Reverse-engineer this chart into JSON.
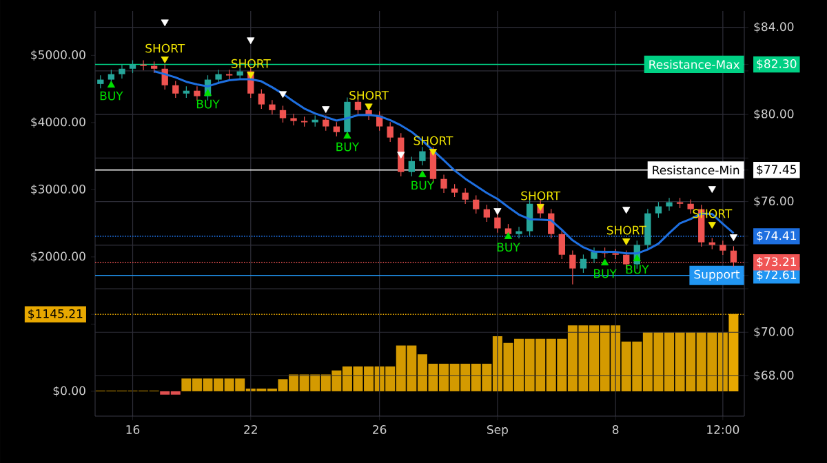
{
  "chart_data": {
    "type": "candlestick",
    "grid": true,
    "categories": [
      null,
      null,
      null,
      "16",
      null,
      null,
      null,
      null,
      null,
      null,
      null,
      null,
      null,
      null,
      "22",
      null,
      null,
      null,
      null,
      null,
      null,
      null,
      null,
      null,
      null,
      null,
      "26",
      null,
      null,
      null,
      null,
      null,
      null,
      null,
      null,
      null,
      null,
      "Sep",
      null,
      null,
      null,
      null,
      null,
      null,
      null,
      null,
      null,
      null,
      "8",
      null,
      null,
      null,
      null,
      null,
      null,
      null,
      null,
      null,
      "12:00",
      null
    ],
    "ohlc": [
      [
        81.4,
        81.8,
        81.2,
        81.6
      ],
      [
        81.6,
        82.05,
        81.4,
        81.85
      ],
      [
        81.85,
        82.3,
        81.65,
        82.1
      ],
      [
        82.1,
        82.49,
        81.9,
        82.29
      ],
      [
        82.29,
        82.49,
        82.03,
        82.23
      ],
      [
        82.23,
        82.43,
        81.9,
        82.1
      ],
      [
        82.1,
        82.3,
        81.14,
        81.34
      ],
      [
        81.34,
        81.54,
        80.76,
        80.96
      ],
      [
        80.96,
        81.29,
        80.76,
        81.09
      ],
      [
        81.09,
        81.29,
        80.64,
        80.84
      ],
      [
        80.84,
        81.8,
        80.64,
        81.6
      ],
      [
        81.6,
        82.05,
        81.4,
        81.85
      ],
      [
        81.85,
        82.05,
        81.59,
        81.79
      ],
      [
        81.79,
        82.18,
        81.59,
        81.98
      ],
      [
        81.98,
        82.18,
        80.76,
        80.96
      ],
      [
        80.96,
        81.16,
        80.26,
        80.46
      ],
      [
        80.46,
        80.66,
        80.0,
        80.2
      ],
      [
        80.2,
        80.4,
        79.63,
        79.83
      ],
      [
        79.83,
        80.03,
        79.5,
        79.7
      ],
      [
        79.7,
        79.9,
        79.44,
        79.64
      ],
      [
        79.64,
        79.96,
        79.44,
        79.76
      ],
      [
        79.76,
        79.96,
        79.25,
        79.45
      ],
      [
        79.45,
        79.65,
        78.99,
        79.19
      ],
      [
        79.19,
        80.78,
        78.99,
        80.58
      ],
      [
        80.58,
        80.78,
        80.0,
        80.2
      ],
      [
        80.2,
        80.4,
        79.75,
        79.95
      ],
      [
        79.95,
        80.15,
        79.25,
        79.45
      ],
      [
        79.45,
        79.65,
        78.74,
        78.94
      ],
      [
        78.94,
        79.14,
        77.16,
        77.36
      ],
      [
        77.36,
        78.06,
        77.16,
        77.86
      ],
      [
        77.86,
        78.51,
        77.66,
        78.31
      ],
      [
        78.31,
        78.51,
        76.84,
        77.04
      ],
      [
        77.04,
        77.24,
        76.4,
        76.6
      ],
      [
        76.6,
        76.8,
        76.21,
        76.41
      ],
      [
        76.41,
        76.61,
        75.89,
        76.09
      ],
      [
        76.09,
        76.29,
        75.45,
        75.65
      ],
      [
        75.65,
        75.85,
        75.07,
        75.27
      ],
      [
        75.27,
        75.47,
        74.57,
        74.77
      ],
      [
        74.77,
        74.97,
        74.31,
        74.51
      ],
      [
        74.51,
        74.84,
        74.31,
        74.64
      ],
      [
        74.64,
        76.1,
        74.44,
        75.9
      ],
      [
        75.9,
        76.1,
        75.26,
        75.46
      ],
      [
        75.46,
        75.66,
        74.31,
        74.51
      ],
      [
        74.51,
        74.71,
        73.36,
        73.56
      ],
      [
        73.56,
        73.76,
        72.2,
        72.93
      ],
      [
        72.93,
        73.57,
        72.73,
        73.37
      ],
      [
        73.37,
        73.89,
        73.17,
        73.69
      ],
      [
        73.69,
        73.89,
        73.43,
        73.63
      ],
      [
        73.63,
        73.83,
        73.36,
        73.56
      ],
      [
        73.56,
        73.76,
        72.92,
        73.12
      ],
      [
        73.12,
        74.21,
        72.92,
        74.01
      ],
      [
        74.01,
        75.66,
        73.81,
        75.46
      ],
      [
        75.46,
        75.98,
        75.26,
        75.78
      ],
      [
        75.78,
        76.17,
        75.58,
        75.97
      ],
      [
        75.97,
        76.17,
        75.7,
        75.9
      ],
      [
        75.9,
        76.1,
        75.45,
        75.65
      ],
      [
        75.65,
        75.85,
        73.93,
        74.13
      ],
      [
        74.13,
        74.33,
        73.81,
        74.01
      ],
      [
        74.01,
        74.21,
        73.55,
        73.75
      ],
      [
        73.75,
        73.95,
        73.01,
        73.21
      ]
    ],
    "ylim": [
      66.15,
      84.75
    ],
    "yticks": [
      {
        "value": 68,
        "label": "$68.00"
      },
      {
        "value": 70,
        "label": "$70.00"
      },
      {
        "value": 72,
        "label": null
      },
      {
        "value": 72.61,
        "label": "$72.61"
      },
      {
        "value": 73.21,
        "label": "$73.21"
      },
      {
        "value": 74,
        "label": null
      },
      {
        "value": 74.41,
        "label": "$74.41"
      },
      {
        "value": 76,
        "label": "$76.00"
      },
      {
        "value": 77.45,
        "label": "$77.45"
      },
      {
        "value": 78,
        "label": null
      },
      {
        "value": 80,
        "label": "$80.00"
      },
      {
        "value": 82,
        "label": null
      },
      {
        "value": 82.3,
        "label": "$82.30"
      },
      {
        "value": 84,
        "label": "$84.00"
      }
    ],
    "y2lim": [
      -370,
      5660
    ],
    "y2ticks": [
      {
        "value": 0,
        "label": "$0.00"
      },
      {
        "value": 1000,
        "label": null
      },
      {
        "value": 1145.21,
        "label": "$1145.21"
      },
      {
        "value": 2000,
        "label": "$2000.00"
      },
      {
        "value": 3000,
        "label": "$3000.00"
      },
      {
        "value": 4000,
        "label": "$4000.00"
      },
      {
        "value": 5000,
        "label": "$5000.00"
      }
    ],
    "ref_lines": [
      {
        "axis": "y",
        "value": 82.3,
        "label": "Resistance-Max",
        "color": "#00d084"
      },
      {
        "axis": "y",
        "value": 77.45,
        "label": "Resistance-Min",
        "color": "#ffffff"
      },
      {
        "axis": "y",
        "value": 74.41,
        "color": "#1e6fe0",
        "line_style": "dotted"
      },
      {
        "axis": "y",
        "value": 73.21,
        "color": "#f05454",
        "line_style": "dotted"
      },
      {
        "axis": "y",
        "value": 72.61,
        "label": "Support",
        "color": "#2196f3"
      },
      {
        "axis": "y2",
        "value": 1145.21,
        "color": "#e8a800",
        "line_style": "dotted"
      }
    ],
    "series": [
      {
        "type": "bar",
        "axis": "y2",
        "values": [
          10,
          10,
          10,
          10,
          10,
          10,
          -50,
          -50,
          190,
          190,
          190,
          190,
          190,
          190,
          40,
          40,
          40,
          180,
          250,
          250,
          250,
          250,
          310,
          370,
          370,
          370,
          370,
          370,
          680,
          680,
          550,
          410,
          410,
          410,
          410,
          410,
          410,
          820,
          720,
          780,
          780,
          780,
          780,
          780,
          980,
          980,
          980,
          980,
          980,
          740,
          740,
          880,
          880,
          880,
          880,
          880,
          880,
          880,
          880,
          1150
        ],
        "colors": [
          "#d49a00",
          "#d49a00",
          "#d49a00",
          "#d49a00",
          "#d49a00",
          "#d49a00",
          "#e05050",
          "#e05050",
          "#d49a00",
          "#d49a00",
          "#d49a00",
          "#d49a00",
          "#d49a00",
          "#d49a00",
          "#d49a00",
          "#d49a00",
          "#d49a00",
          "#d49a00",
          "#d49a00",
          "#d49a00",
          "#d49a00",
          "#d49a00",
          "#d49a00",
          "#d49a00",
          "#d49a00",
          "#d49a00",
          "#d49a00",
          "#d49a00",
          "#d49a00",
          "#d49a00",
          "#d49a00",
          "#d49a00",
          "#d49a00",
          "#d49a00",
          "#d49a00",
          "#d49a00",
          "#d49a00",
          "#d49a00",
          "#d49a00",
          "#d49a00",
          "#d49a00",
          "#d49a00",
          "#d49a00",
          "#d49a00",
          "#d49a00",
          "#d49a00",
          "#d49a00",
          "#d49a00",
          "#d49a00",
          "#d49a00",
          "#d49a00",
          "#d49a00",
          "#d49a00",
          "#d49a00",
          "#d49a00",
          "#d49a00",
          "#d49a00",
          "#d49a00",
          "#d49a00",
          "#e8a800"
        ]
      },
      {
        "type": "line",
        "color": "#1e6fe0",
        "values": [
          null,
          null,
          null,
          null,
          null,
          81.98,
          81.85,
          81.7,
          81.5,
          81.38,
          81.29,
          81.45,
          81.57,
          81.62,
          81.62,
          81.52,
          81.25,
          80.95,
          80.6,
          80.27,
          80.05,
          79.88,
          79.72,
          79.83,
          79.97,
          79.98,
          79.92,
          79.74,
          79.5,
          79.2,
          78.8,
          78.35,
          77.9,
          77.43,
          77.05,
          76.72,
          76.4,
          76.12,
          75.75,
          75.4,
          75.19,
          75.17,
          75.14,
          74.7,
          74.22,
          73.9,
          73.7,
          73.69,
          73.69,
          73.62,
          73.62,
          73.8,
          74.07,
          74.55,
          75.0,
          75.2,
          75.45,
          75.43,
          74.98,
          74.55
        ]
      },
      {
        "type": "scatter",
        "name": "BUY",
        "color": "#00e000",
        "marker": "triangle",
        "values": [
          null,
          81.34,
          null,
          null,
          null,
          null,
          null,
          null,
          null,
          null,
          80.96,
          null,
          null,
          null,
          null,
          null,
          null,
          null,
          null,
          null,
          null,
          null,
          null,
          79.0,
          null,
          null,
          null,
          null,
          null,
          null,
          77.23,
          null,
          null,
          null,
          null,
          null,
          null,
          null,
          74.39,
          null,
          null,
          null,
          null,
          null,
          null,
          null,
          null,
          73.18,
          null,
          null,
          73.37,
          null,
          null,
          null,
          null,
          null,
          null,
          null,
          null,
          null
        ]
      },
      {
        "type": "scatter",
        "name": "SHORT",
        "color": "#f2e600",
        "marker": "triangle",
        "values": [
          null,
          null,
          null,
          null,
          null,
          null,
          82.55,
          null,
          null,
          null,
          null,
          null,
          null,
          null,
          81.85,
          null,
          null,
          null,
          null,
          null,
          null,
          null,
          null,
          null,
          null,
          80.39,
          null,
          null,
          null,
          null,
          null,
          78.31,
          null,
          null,
          null,
          null,
          null,
          null,
          null,
          null,
          null,
          75.78,
          null,
          null,
          null,
          null,
          null,
          null,
          null,
          74.2,
          null,
          null,
          null,
          null,
          null,
          null,
          null,
          74.96,
          null,
          null
        ]
      },
      {
        "type": "scatter",
        "color": "#ffffff",
        "marker": "triangle",
        "values": [
          null,
          null,
          null,
          null,
          null,
          null,
          84.25,
          null,
          null,
          null,
          null,
          null,
          null,
          null,
          83.43,
          null,
          null,
          80.96,
          null,
          null,
          null,
          80.27,
          null,
          null,
          null,
          null,
          null,
          null,
          78.18,
          null,
          null,
          null,
          null,
          null,
          null,
          null,
          null,
          75.59,
          null,
          null,
          null,
          null,
          null,
          null,
          null,
          null,
          null,
          null,
          null,
          75.65,
          null,
          null,
          null,
          null,
          null,
          null,
          null,
          76.6,
          null,
          74.39
        ]
      }
    ]
  }
}
